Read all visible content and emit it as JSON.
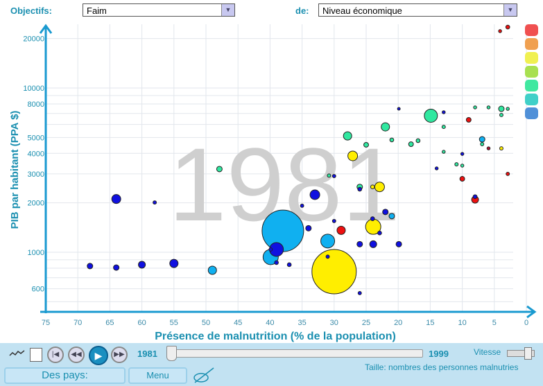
{
  "header": {
    "objectifs_label": "Objectifs:",
    "objectifs_value": "Faim",
    "de_label": "de:",
    "de_value": "Niveau économique"
  },
  "controls": {
    "start_year": "1981",
    "end_year": "1999",
    "speed_label": "Vitesse",
    "size_label": "Taille: nombres des personnes malnutries",
    "countries_button": "Des pays:",
    "menu_button": "Menu",
    "current_year_progress": 0
  },
  "legend_colors": [
    "#f05050",
    "#f0a050",
    "#f0f050",
    "#a8e050",
    "#40e8a0",
    "#40d0c8",
    "#5090d8"
  ],
  "chart_data": {
    "type": "scatter",
    "subtype": "bubble",
    "watermark": "1981",
    "xlabel": "Présence de malnutrition (% de la population)",
    "ylabel": "PIB par habitant (PPA $)",
    "xlim": [
      75,
      0
    ],
    "ylim": [
      433,
      25000
    ],
    "yscale": "log",
    "grid": true,
    "xticks": [
      "75",
      "70",
      "65",
      "60",
      "55",
      "50",
      "45",
      "40",
      "35",
      "30",
      "25",
      "20",
      "15",
      "10",
      "5",
      "0"
    ],
    "yticks": [
      {
        "v": 600,
        "l": "600"
      },
      {
        "v": 1000,
        "l": "1000"
      },
      {
        "v": 2000,
        "l": "2000"
      },
      {
        "v": 3000,
        "l": "3000"
      },
      {
        "v": 4000,
        "l": "4000"
      },
      {
        "v": 5000,
        "l": "5000"
      },
      {
        "v": 8000,
        "l": "8000"
      },
      {
        "v": 10000,
        "l": "10000"
      },
      {
        "v": 20000,
        "l": "20000"
      }
    ],
    "palette": [
      "#1010e0",
      "#10b0f0",
      "#ffee00",
      "#30e8a0",
      "#ee1010",
      "#b01030"
    ],
    "points": [
      {
        "x": 30.0,
        "y": 762,
        "s": 1024,
        "c": 2
      },
      {
        "x": 38.0,
        "y": 1350,
        "s": 900,
        "c": 1
      },
      {
        "x": 39.9,
        "y": 935,
        "s": 121,
        "c": 1
      },
      {
        "x": 39.0,
        "y": 1040,
        "s": 100,
        "c": 0
      },
      {
        "x": 31.0,
        "y": 1170,
        "s": 100,
        "c": 1
      },
      {
        "x": 23.9,
        "y": 1430,
        "s": 121,
        "c": 2
      },
      {
        "x": 14.9,
        "y": 6780,
        "s": 90,
        "c": 3
      },
      {
        "x": 27.1,
        "y": 3860,
        "s": 49,
        "c": 2
      },
      {
        "x": 22.9,
        "y": 2500,
        "s": 49,
        "c": 2
      },
      {
        "x": 64.0,
        "y": 2110,
        "s": 42,
        "c": 0
      },
      {
        "x": 33.0,
        "y": 2240,
        "s": 49,
        "c": 0
      },
      {
        "x": 28.9,
        "y": 1360,
        "s": 36,
        "c": 4
      },
      {
        "x": 22.0,
        "y": 5800,
        "s": 36,
        "c": 3
      },
      {
        "x": 27.9,
        "y": 5110,
        "s": 36,
        "c": 3
      },
      {
        "x": 49.0,
        "y": 777,
        "s": 36,
        "c": 1
      },
      {
        "x": 55.0,
        "y": 855,
        "s": 36,
        "c": 0
      },
      {
        "x": 60.0,
        "y": 840,
        "s": 25,
        "c": 0
      },
      {
        "x": 8.0,
        "y": 2090,
        "s": 25,
        "c": 4
      },
      {
        "x": 23.9,
        "y": 1120,
        "s": 25,
        "c": 0
      },
      {
        "x": 64.0,
        "y": 807,
        "s": 16,
        "c": 0
      },
      {
        "x": 68.1,
        "y": 824,
        "s": 16,
        "c": 0
      },
      {
        "x": 47.9,
        "y": 3210,
        "s": 16,
        "c": 3
      },
      {
        "x": 34.0,
        "y": 1400,
        "s": 16,
        "c": 0
      },
      {
        "x": 22.0,
        "y": 1760,
        "s": 16,
        "c": 0
      },
      {
        "x": 21.0,
        "y": 1660,
        "s": 16,
        "c": 1
      },
      {
        "x": 26.0,
        "y": 1120,
        "s": 16,
        "c": 0
      },
      {
        "x": 19.9,
        "y": 1120,
        "s": 16,
        "c": 0
      },
      {
        "x": 6.9,
        "y": 4870,
        "s": 16,
        "c": 1
      },
      {
        "x": 18.0,
        "y": 4550,
        "s": 12,
        "c": 3
      },
      {
        "x": 25.0,
        "y": 4510,
        "s": 12,
        "c": 3
      },
      {
        "x": 9.0,
        "y": 6400,
        "s": 12,
        "c": 4
      },
      {
        "x": 3.9,
        "y": 7470,
        "s": 16,
        "c": 3
      },
      {
        "x": 10.0,
        "y": 2800,
        "s": 12,
        "c": 4
      },
      {
        "x": 26.0,
        "y": 2500,
        "s": 16,
        "c": 3
      },
      {
        "x": 26.0,
        "y": 2420,
        "s": 8,
        "c": 0
      },
      {
        "x": 24.0,
        "y": 2500,
        "s": 8,
        "c": 2
      },
      {
        "x": 8.0,
        "y": 2180,
        "s": 8,
        "c": 0
      },
      {
        "x": 2.9,
        "y": 23500,
        "s": 8,
        "c": 4
      },
      {
        "x": 4.1,
        "y": 22200,
        "s": 5,
        "c": 4
      },
      {
        "x": 21.0,
        "y": 4830,
        "s": 8,
        "c": 3
      },
      {
        "x": 16.9,
        "y": 4780,
        "s": 8,
        "c": 3
      },
      {
        "x": 12.9,
        "y": 5800,
        "s": 6,
        "c": 3
      },
      {
        "x": 6.9,
        "y": 4550,
        "s": 6,
        "c": 3
      },
      {
        "x": 5.9,
        "y": 4290,
        "s": 5,
        "c": 5
      },
      {
        "x": 3.9,
        "y": 4290,
        "s": 6,
        "c": 2
      },
      {
        "x": 12.9,
        "y": 4090,
        "s": 5,
        "c": 3
      },
      {
        "x": 10.9,
        "y": 3430,
        "s": 6,
        "c": 3
      },
      {
        "x": 10.0,
        "y": 3370,
        "s": 5,
        "c": 3
      },
      {
        "x": 10.0,
        "y": 3970,
        "s": 5,
        "c": 0
      },
      {
        "x": 14.0,
        "y": 3240,
        "s": 5,
        "c": 0
      },
      {
        "x": 2.9,
        "y": 3000,
        "s": 6,
        "c": 4
      },
      {
        "x": 30.0,
        "y": 2910,
        "s": 6,
        "c": 0
      },
      {
        "x": 30.8,
        "y": 2930,
        "s": 6,
        "c": 3
      },
      {
        "x": 8.0,
        "y": 7620,
        "s": 5,
        "c": 3
      },
      {
        "x": 5.9,
        "y": 7620,
        "s": 5,
        "c": 3
      },
      {
        "x": 2.9,
        "y": 7470,
        "s": 5,
        "c": 3
      },
      {
        "x": 3.9,
        "y": 6850,
        "s": 6,
        "c": 3
      },
      {
        "x": 12.9,
        "y": 7120,
        "s": 5,
        "c": 0
      },
      {
        "x": 19.9,
        "y": 7470,
        "s": 4,
        "c": 0
      },
      {
        "x": 58.0,
        "y": 2010,
        "s": 6,
        "c": 0
      },
      {
        "x": 35.0,
        "y": 1920,
        "s": 6,
        "c": 0
      },
      {
        "x": 30.0,
        "y": 1550,
        "s": 6,
        "c": 0
      },
      {
        "x": 24.0,
        "y": 1600,
        "s": 8,
        "c": 0
      },
      {
        "x": 22.9,
        "y": 1310,
        "s": 8,
        "c": 0
      },
      {
        "x": 39.0,
        "y": 865,
        "s": 8,
        "c": 0
      },
      {
        "x": 37.0,
        "y": 840,
        "s": 8,
        "c": 0
      },
      {
        "x": 39.9,
        "y": 1040,
        "s": 6,
        "c": 0
      },
      {
        "x": 31.0,
        "y": 940,
        "s": 6,
        "c": 0
      },
      {
        "x": 26.0,
        "y": 564,
        "s": 6,
        "c": 0
      }
    ]
  }
}
